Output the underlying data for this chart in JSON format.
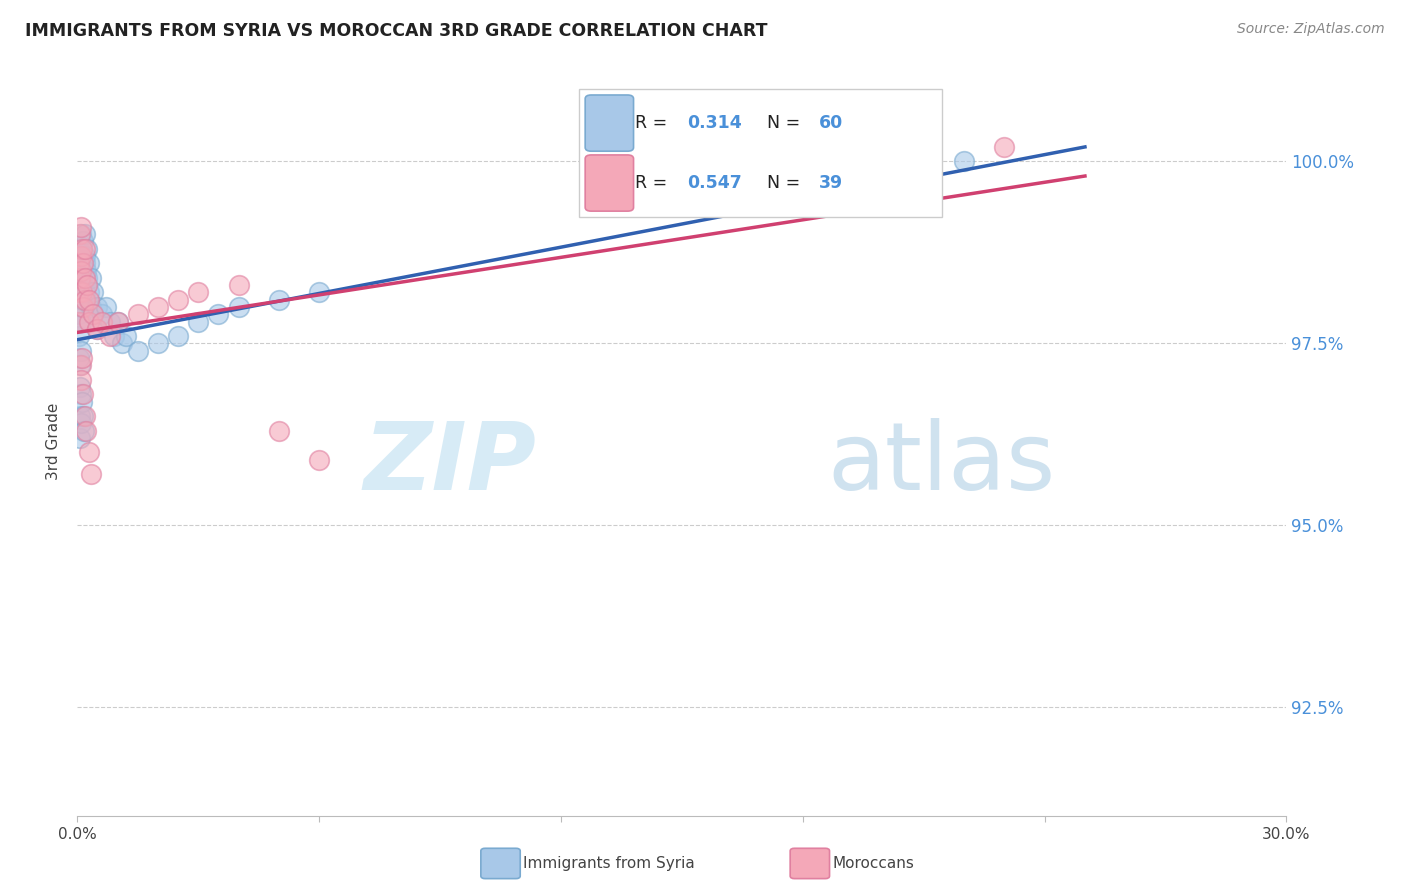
{
  "title": "IMMIGRANTS FROM SYRIA VS MOROCCAN 3RD GRADE CORRELATION CHART",
  "source": "Source: ZipAtlas.com",
  "ylabel": "3rd Grade",
  "ytick_values": [
    92.5,
    95.0,
    97.5,
    100.0
  ],
  "xlim": [
    0.0,
    30.0
  ],
  "ylim": [
    91.0,
    101.3
  ],
  "legend_R_blue": "R = ",
  "legend_val_blue": "0.314",
  "legend_N_blue": "N = ",
  "legend_n_blue": "60",
  "legend_R_pink": "R = ",
  "legend_val_pink": "0.547",
  "legend_N_pink": "N = ",
  "legend_n_pink": "39",
  "syria_color": "#a8c8e8",
  "moroccan_color": "#f4a8b8",
  "syria_edge_color": "#7aaad0",
  "moroccan_edge_color": "#e080a0",
  "syria_line_color": "#3060b0",
  "moroccan_line_color": "#d04070",
  "watermark_zip_color": "#c8dff0",
  "watermark_atlas_color": "#a0c0d8",
  "syria_x": [
    0.05,
    0.05,
    0.05,
    0.05,
    0.05,
    0.05,
    0.08,
    0.08,
    0.08,
    0.1,
    0.1,
    0.1,
    0.1,
    0.1,
    0.12,
    0.12,
    0.15,
    0.15,
    0.15,
    0.18,
    0.18,
    0.2,
    0.2,
    0.2,
    0.22,
    0.25,
    0.25,
    0.3,
    0.3,
    0.35,
    0.35,
    0.4,
    0.4,
    0.5,
    0.5,
    0.6,
    0.7,
    0.8,
    0.9,
    1.0,
    1.1,
    1.2,
    1.5,
    2.0,
    2.5,
    3.0,
    3.5,
    4.0,
    5.0,
    6.0,
    0.07,
    0.07,
    0.07,
    0.07,
    0.09,
    0.09,
    0.11,
    0.13,
    0.16,
    22.0
  ],
  "syria_y": [
    98.8,
    98.5,
    98.2,
    97.9,
    97.6,
    97.3,
    98.7,
    98.3,
    97.8,
    99.0,
    98.6,
    98.2,
    97.8,
    97.4,
    98.4,
    98.0,
    98.9,
    98.5,
    98.1,
    98.7,
    98.2,
    99.0,
    98.6,
    98.2,
    98.5,
    98.8,
    98.4,
    98.6,
    98.2,
    98.4,
    98.0,
    98.2,
    97.9,
    98.0,
    97.7,
    97.9,
    98.0,
    97.8,
    97.6,
    97.8,
    97.5,
    97.6,
    97.4,
    97.5,
    97.6,
    97.8,
    97.9,
    98.0,
    98.1,
    98.2,
    97.2,
    96.9,
    96.5,
    96.2,
    96.8,
    96.4,
    96.7,
    96.5,
    96.3,
    100.0
  ],
  "moroccan_x": [
    0.05,
    0.05,
    0.05,
    0.07,
    0.07,
    0.08,
    0.1,
    0.1,
    0.12,
    0.12,
    0.15,
    0.15,
    0.18,
    0.2,
    0.2,
    0.25,
    0.3,
    0.3,
    0.4,
    0.5,
    0.6,
    0.8,
    1.0,
    1.5,
    2.0,
    2.5,
    3.0,
    4.0,
    5.0,
    6.0,
    0.08,
    0.1,
    0.12,
    0.15,
    0.18,
    0.22,
    0.28,
    0.35,
    23.0
  ],
  "moroccan_y": [
    98.6,
    98.2,
    97.8,
    99.0,
    98.4,
    98.7,
    99.1,
    98.5,
    98.8,
    98.2,
    98.6,
    98.0,
    98.4,
    98.8,
    98.1,
    98.3,
    98.1,
    97.8,
    97.9,
    97.7,
    97.8,
    97.6,
    97.8,
    97.9,
    98.0,
    98.1,
    98.2,
    98.3,
    96.3,
    95.9,
    97.2,
    97.0,
    97.3,
    96.8,
    96.5,
    96.3,
    96.0,
    95.7,
    100.2
  ],
  "syria_trend_x0": 0.0,
  "syria_trend_y0": 97.55,
  "syria_trend_x1": 25.0,
  "syria_trend_y1": 100.2,
  "moroccan_trend_x0": 0.0,
  "moroccan_trend_y0": 97.65,
  "moroccan_trend_x1": 25.0,
  "moroccan_trend_y1": 99.8
}
